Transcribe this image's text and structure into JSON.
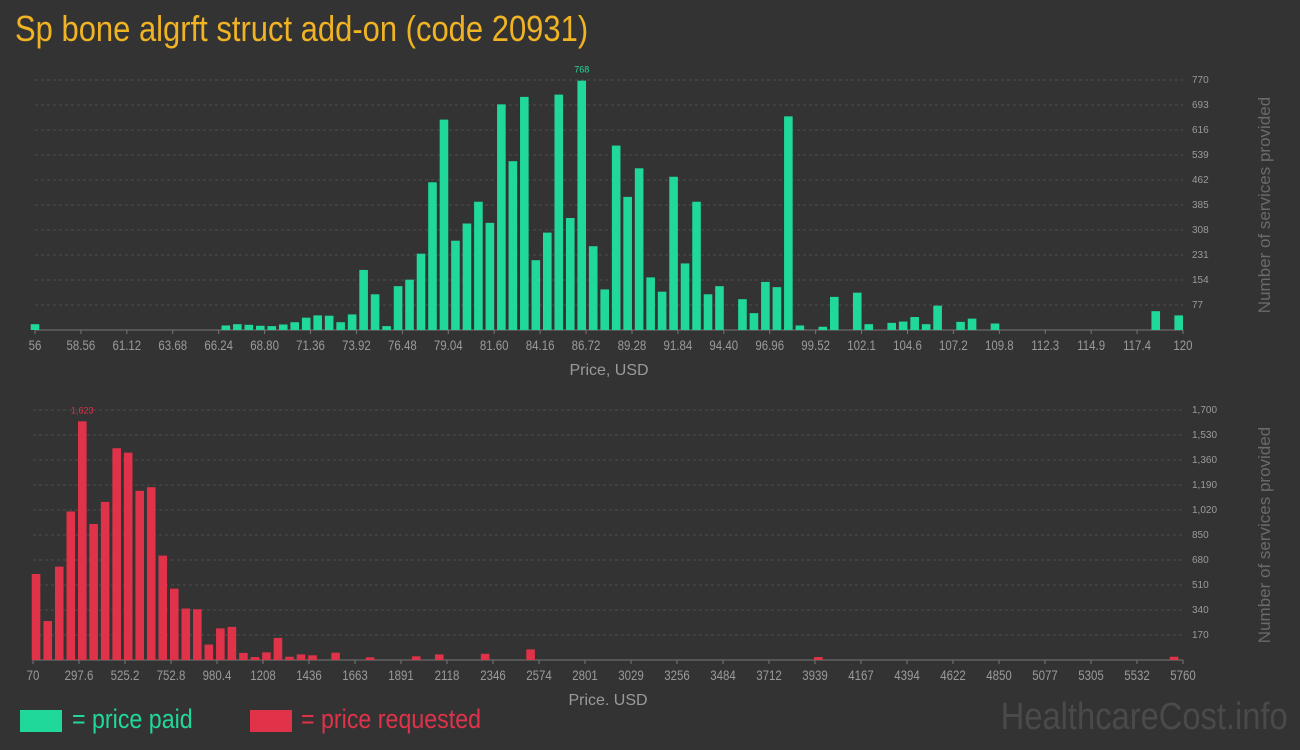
{
  "title": "Sp bone algrft struct add-on (code 20931)",
  "colors": {
    "paid": "#20d89a",
    "requested": "#e0334a",
    "title": "#f0b323",
    "axis_text": "#9a9a9a",
    "grid": "#4c4c4c",
    "background": "#333333"
  },
  "legend": {
    "paid_label": "= price paid",
    "requested_label": "= price requested"
  },
  "watermark": "HealthcareCost.info",
  "chart_data": [
    {
      "id": "price-paid",
      "type": "bar",
      "title": "",
      "xlabel": "Price, USD",
      "ylabel": "Number of services provided",
      "xlim": [
        56,
        120
      ],
      "ylim": [
        0,
        770
      ],
      "grid": true,
      "max_label": "768",
      "y_ticks": [
        77,
        154,
        231,
        308,
        385,
        462,
        539,
        616,
        693,
        770
      ],
      "x_tick_labels": [
        "56",
        "58.56",
        "61.12",
        "63.68",
        "66.24",
        "68.80",
        "71.36",
        "73.92",
        "76.48",
        "79.04",
        "81.60",
        "84.16",
        "86.72",
        "89.28",
        "91.84",
        "94.40",
        "96.96",
        "99.52",
        "102.1",
        "104.6",
        "107.2",
        "109.8",
        "112.3",
        "114.9",
        "117.4",
        "120"
      ],
      "series": [
        {
          "name": "price paid",
          "x": [
            56.0,
            66.64,
            67.28,
            67.92,
            68.56,
            69.2,
            69.84,
            70.48,
            71.12,
            71.76,
            72.4,
            73.04,
            73.68,
            74.32,
            74.96,
            75.6,
            76.24,
            76.88,
            77.52,
            78.16,
            78.8,
            79.44,
            80.08,
            80.72,
            81.36,
            82.0,
            82.64,
            83.28,
            83.92,
            84.56,
            85.2,
            85.84,
            86.48,
            87.12,
            87.76,
            88.4,
            89.04,
            89.68,
            90.32,
            90.96,
            91.6,
            92.24,
            92.88,
            93.52,
            94.16,
            95.44,
            96.08,
            96.72,
            97.36,
            98.0,
            98.64,
            99.92,
            100.56,
            101.84,
            102.48,
            103.76,
            104.4,
            105.04,
            105.68,
            106.32,
            107.6,
            108.24,
            109.52,
            118.48,
            119.76
          ],
          "values": [
            18,
            14,
            18,
            16,
            13,
            12,
            17,
            24,
            38,
            45,
            44,
            24,
            48,
            185,
            110,
            12,
            135,
            155,
            235,
            455,
            648,
            275,
            328,
            395,
            330,
            695,
            520,
            718,
            215,
            300,
            725,
            345,
            768,
            258,
            125,
            568,
            410,
            498,
            162,
            118,
            472,
            205,
            395,
            110,
            135,
            95,
            52,
            148,
            132,
            658,
            14,
            10,
            102,
            115,
            18,
            22,
            26,
            40,
            18,
            75,
            25,
            35,
            20,
            58,
            45
          ]
        }
      ]
    },
    {
      "id": "price-requested",
      "type": "bar",
      "title": "",
      "xlabel": "Price, USD",
      "ylabel": "Number of services provided",
      "xlim": [
        70,
        5760
      ],
      "ylim": [
        0,
        1700
      ],
      "grid": true,
      "max_label": "1,623",
      "y_ticks": [
        170,
        340,
        510,
        680,
        850,
        1020,
        1190,
        1360,
        1530,
        1700
      ],
      "y_tick_labels": [
        "170",
        "340",
        "510",
        "680",
        "850",
        "1,020",
        "1,190",
        "1,360",
        "1,530",
        "1,700"
      ],
      "x_tick_labels": [
        "70",
        "297.6",
        "525.2",
        "752.8",
        "980.4",
        "1208",
        "1436",
        "1663",
        "1891",
        "2118",
        "2346",
        "2574",
        "2801",
        "3029",
        "3256",
        "3484",
        "3712",
        "3939",
        "4167",
        "4394",
        "4622",
        "4850",
        "5077",
        "5305",
        "5532",
        "5760"
      ],
      "series": [
        {
          "name": "price requested",
          "x": [
            85,
            143,
            200,
            257,
            314,
            370,
            427,
            484,
            541,
            598,
            655,
            712,
            769,
            826,
            883,
            940,
            997,
            1054,
            1111,
            1168,
            1225,
            1282,
            1339,
            1396,
            1453,
            1567,
            1738,
            1966,
            2080,
            2307,
            2532,
            3956,
            5716
          ],
          "values": [
            585,
            265,
            635,
            1010,
            1623,
            925,
            1075,
            1440,
            1410,
            1150,
            1175,
            710,
            485,
            350,
            345,
            105,
            215,
            225,
            48,
            20,
            52,
            150,
            22,
            38,
            32,
            50,
            18,
            25,
            38,
            42,
            72,
            20,
            22
          ]
        }
      ]
    }
  ]
}
